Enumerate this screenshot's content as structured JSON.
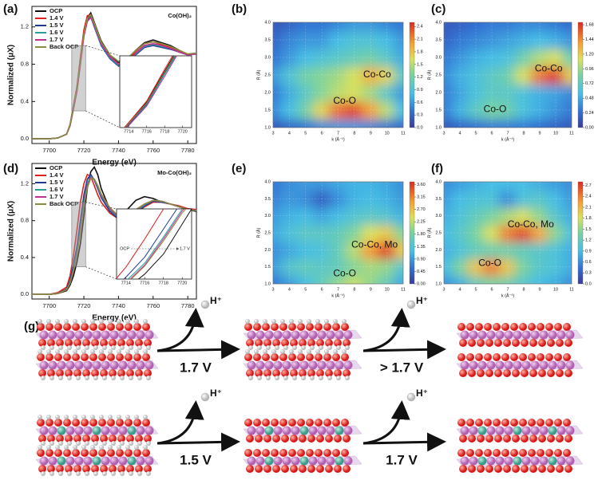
{
  "chart_data": [
    {
      "type": "line",
      "panel_label": "(a)",
      "annotation": "Co(OH)₂",
      "xlabel": "Energy (eV)",
      "ylabel": "Normalized (μX)",
      "xlim": [
        7690,
        7785
      ],
      "ylim": [
        -0.05,
        1.42
      ],
      "xticks": [
        7700,
        7720,
        7740,
        7760,
        7780
      ],
      "yticks": [
        {
          "value": 0,
          "label": "0.0"
        },
        {
          "value": 0.4,
          "label": "0.4"
        },
        {
          "value": 0.8,
          "label": "0.8"
        },
        {
          "value": 1.2,
          "label": "1.2"
        }
      ],
      "x": [
        7690,
        7700,
        7705,
        7710,
        7712,
        7714,
        7716,
        7718,
        7720,
        7722,
        7724,
        7726,
        7728,
        7730,
        7735,
        7740,
        7745,
        7750,
        7755,
        7760,
        7765,
        7770,
        7775,
        7780,
        7785
      ],
      "series": [
        {
          "name": "OCP",
          "color": "#111111",
          "values": [
            0,
            0,
            0.01,
            0.05,
            0.15,
            0.35,
            0.55,
            0.85,
            1.15,
            1.3,
            1.35,
            1.25,
            1.15,
            1.05,
            0.9,
            0.82,
            0.85,
            0.95,
            1.03,
            1.06,
            1.03,
            1.0,
            0.95,
            0.9,
            0.92
          ]
        },
        {
          "name": "1.4 V",
          "color": "#e02020",
          "values": [
            0,
            0,
            0.01,
            0.05,
            0.15,
            0.35,
            0.56,
            0.87,
            1.17,
            1.32,
            1.33,
            1.22,
            1.12,
            1.02,
            0.88,
            0.8,
            0.84,
            0.94,
            1.02,
            1.04,
            1.01,
            0.98,
            0.94,
            0.9,
            0.92
          ]
        },
        {
          "name": "1.5 V",
          "color": "#1f3a93",
          "values": [
            0,
            0,
            0.01,
            0.05,
            0.14,
            0.33,
            0.53,
            0.83,
            1.12,
            1.28,
            1.31,
            1.2,
            1.1,
            1.0,
            0.86,
            0.78,
            0.8,
            0.9,
            0.98,
            1.0,
            0.98,
            0.96,
            0.93,
            0.9,
            0.91
          ]
        },
        {
          "name": "1.6 V",
          "color": "#2a9d9d",
          "values": [
            0,
            0,
            0.01,
            0.05,
            0.14,
            0.32,
            0.52,
            0.82,
            1.11,
            1.27,
            1.3,
            1.21,
            1.11,
            1.01,
            0.87,
            0.79,
            0.81,
            0.91,
            0.99,
            1.01,
            0.99,
            0.97,
            0.93,
            0.9,
            0.91
          ]
        },
        {
          "name": "1.7 V",
          "color": "#c03090",
          "values": [
            0,
            0,
            0.01,
            0.05,
            0.14,
            0.32,
            0.51,
            0.8,
            1.1,
            1.26,
            1.3,
            1.22,
            1.12,
            1.02,
            0.88,
            0.8,
            0.82,
            0.92,
            1.0,
            1.02,
            1.0,
            0.97,
            0.93,
            0.9,
            0.91
          ]
        },
        {
          "name": "Back OCP",
          "color": "#8a8a40",
          "values": [
            0,
            0,
            0.01,
            0.05,
            0.15,
            0.34,
            0.54,
            0.84,
            1.13,
            1.29,
            1.33,
            1.24,
            1.14,
            1.04,
            0.9,
            0.83,
            0.86,
            0.95,
            1.02,
            1.04,
            1.02,
            0.99,
            0.95,
            0.91,
            0.92
          ]
        }
      ],
      "inset": {
        "xlim": [
          7713,
          7721
        ],
        "ylim": [
          0.3,
          1.0
        ],
        "xticks": [
          7714,
          7716,
          7718,
          7720
        ]
      }
    },
    {
      "type": "heatmap",
      "panel_label": "(b)",
      "xlabel": "k (Å⁻¹)",
      "ylabel": "R (Å)",
      "annotations": [
        "Co-Co",
        "Co-O"
      ],
      "xlim": [
        3,
        11
      ],
      "ylim": [
        1,
        4
      ],
      "xticks": [
        3,
        4,
        5,
        6,
        7,
        8,
        9,
        10,
        11
      ],
      "yticks": [
        {
          "value": 1,
          "label": "1.0"
        },
        1.5,
        {
          "value": 2,
          "label": "2.0"
        },
        2.5,
        {
          "value": 3,
          "label": "3.0"
        },
        3.5,
        {
          "value": 4,
          "label": "4.0"
        }
      ],
      "x": [
        3,
        4,
        5,
        6,
        7,
        8,
        9,
        10,
        11
      ],
      "y": [
        1,
        1.5,
        2,
        2.5,
        3,
        3.5,
        4
      ],
      "z": [
        [
          0.2,
          0.3,
          0.4,
          0.5,
          0.6,
          0.6,
          0.5,
          0.4,
          0.3
        ],
        [
          0.5,
          0.8,
          1.2,
          1.7,
          2.2,
          2.4,
          2.0,
          1.5,
          0.8
        ],
        [
          0.4,
          0.7,
          1.0,
          1.3,
          1.5,
          1.6,
          1.4,
          1.0,
          0.6
        ],
        [
          0.6,
          0.9,
          1.2,
          1.3,
          1.4,
          1.6,
          1.9,
          1.7,
          1.0
        ],
        [
          0.4,
          0.6,
          0.8,
          0.9,
          1.0,
          1.1,
          1.2,
          1.0,
          0.7
        ],
        [
          0.3,
          0.5,
          0.6,
          0.6,
          0.8,
          0.9,
          0.9,
          0.8,
          0.6
        ],
        [
          0.2,
          0.3,
          0.4,
          0.4,
          0.5,
          0.6,
          0.6,
          0.5,
          0.4
        ]
      ],
      "zlim": [
        0,
        2.5
      ],
      "zticks": [
        {
          "value": 0,
          "label": "0.0"
        },
        0.3,
        0.6,
        0.9,
        1.2,
        1.5,
        1.8,
        2.1,
        2.4
      ]
    },
    {
      "type": "heatmap",
      "panel_label": "(c)",
      "xlabel": "k (Å⁻¹)",
      "ylabel": "R (Å)",
      "annotations": [
        "Co-Co",
        "Co-O"
      ],
      "xlim": [
        3,
        11
      ],
      "ylim": [
        1,
        4
      ],
      "xticks": [
        3,
        4,
        5,
        6,
        7,
        8,
        9,
        10,
        11
      ],
      "yticks": [
        {
          "value": 1,
          "label": "1.0"
        },
        1.5,
        {
          "value": 2,
          "label": "2.0"
        },
        2.5,
        {
          "value": 3,
          "label": "3.0"
        },
        3.5,
        {
          "value": 4,
          "label": "4.0"
        }
      ],
      "x": [
        3,
        4,
        5,
        6,
        7,
        8,
        9,
        10,
        11
      ],
      "y": [
        1,
        1.5,
        2,
        2.5,
        3,
        3.5,
        4
      ],
      "z": [
        [
          0.15,
          0.2,
          0.25,
          0.3,
          0.3,
          0.3,
          0.25,
          0.2,
          0.15
        ],
        [
          0.3,
          0.5,
          0.7,
          0.85,
          0.8,
          0.6,
          0.5,
          0.4,
          0.3
        ],
        [
          0.3,
          0.45,
          0.6,
          0.7,
          0.7,
          0.6,
          0.5,
          0.45,
          0.35
        ],
        [
          0.35,
          0.5,
          0.6,
          0.7,
          0.8,
          1.1,
          1.5,
          1.68,
          1.2
        ],
        [
          0.3,
          0.4,
          0.5,
          0.55,
          0.6,
          0.8,
          1.0,
          1.1,
          0.8
        ],
        [
          0.2,
          0.3,
          0.35,
          0.4,
          0.45,
          0.5,
          0.55,
          0.5,
          0.4
        ],
        [
          0.15,
          0.2,
          0.25,
          0.3,
          0.3,
          0.35,
          0.35,
          0.3,
          0.25
        ]
      ],
      "zlim": [
        0,
        1.72
      ],
      "zticks": [
        {
          "value": 0,
          "label": "0.00"
        },
        0.24,
        0.48,
        0.72,
        0.96,
        {
          "value": 1.2,
          "label": "1.20"
        },
        1.44,
        1.68
      ]
    },
    {
      "type": "line",
      "panel_label": "(d)",
      "annotation": "Mo-Co(OH)₂",
      "xlabel": "Energy (eV)",
      "ylabel": "Normalized (μX)",
      "xlim": [
        7690,
        7785
      ],
      "ylim": [
        -0.05,
        1.42
      ],
      "xticks": [
        7700,
        7720,
        7740,
        7760,
        7780
      ],
      "yticks": [
        {
          "value": 0,
          "label": "0.0"
        },
        {
          "value": 0.4,
          "label": "0.4"
        },
        {
          "value": 0.8,
          "label": "0.8"
        },
        {
          "value": 1.2,
          "label": "1.2"
        }
      ],
      "x": [
        7690,
        7700,
        7705,
        7710,
        7712,
        7714,
        7716,
        7718,
        7720,
        7722,
        7724,
        7726,
        7728,
        7730,
        7735,
        7740,
        7745,
        7750,
        7755,
        7760,
        7765,
        7770,
        7775,
        7780,
        7785
      ],
      "series": [
        {
          "name": "OCP",
          "color": "#111111",
          "values": [
            0,
            0,
            0.01,
            0.04,
            0.1,
            0.2,
            0.35,
            0.55,
            0.85,
            1.15,
            1.33,
            1.38,
            1.3,
            1.15,
            0.92,
            0.85,
            0.92,
            1.02,
            1.06,
            1.04,
            1.0,
            0.98,
            0.95,
            0.92,
            0.9
          ]
        },
        {
          "name": "1.4 V",
          "color": "#e02020",
          "values": [
            0,
            0,
            0.02,
            0.08,
            0.2,
            0.42,
            0.7,
            1.0,
            1.2,
            1.3,
            1.28,
            1.18,
            1.08,
            1.0,
            0.88,
            0.82,
            0.82,
            0.88,
            0.95,
            1.0,
            1.0,
            0.98,
            0.96,
            0.93,
            0.92
          ]
        },
        {
          "name": "1.5 V",
          "color": "#1f3a93",
          "values": [
            0,
            0,
            0.01,
            0.06,
            0.15,
            0.32,
            0.52,
            0.8,
            1.08,
            1.25,
            1.3,
            1.24,
            1.15,
            1.05,
            0.9,
            0.82,
            0.82,
            0.88,
            0.96,
            1.01,
            1.0,
            0.98,
            0.95,
            0.92,
            0.91
          ]
        },
        {
          "name": "1.6 V",
          "color": "#2a9d9d",
          "values": [
            0,
            0,
            0.01,
            0.05,
            0.13,
            0.28,
            0.46,
            0.72,
            1.0,
            1.2,
            1.28,
            1.25,
            1.17,
            1.07,
            0.92,
            0.83,
            0.84,
            0.9,
            0.97,
            1.02,
            1.01,
            0.98,
            0.95,
            0.92,
            0.91
          ]
        },
        {
          "name": "1.7 V",
          "color": "#c03090",
          "values": [
            0,
            0,
            0.01,
            0.05,
            0.12,
            0.26,
            0.44,
            0.7,
            0.98,
            1.18,
            1.27,
            1.25,
            1.18,
            1.08,
            0.93,
            0.84,
            0.85,
            0.91,
            0.98,
            1.02,
            1.01,
            0.98,
            0.95,
            0.92,
            0.91
          ]
        },
        {
          "name": "Back OCP",
          "color": "#8a8a40",
          "values": [
            0,
            0,
            0.01,
            0.05,
            0.12,
            0.25,
            0.43,
            0.68,
            0.96,
            1.16,
            1.26,
            1.25,
            1.18,
            1.09,
            0.94,
            0.85,
            0.86,
            0.92,
            0.98,
            1.02,
            1.01,
            0.98,
            0.95,
            0.92,
            0.91
          ]
        }
      ],
      "inset": {
        "xlim": [
          7713,
          7721
        ],
        "ylim": [
          0.3,
          1.0
        ],
        "xticks": [
          7714,
          7716,
          7718,
          7720
        ],
        "annotations": [
          "OCP",
          "1.7 V"
        ]
      }
    },
    {
      "type": "heatmap",
      "panel_label": "(e)",
      "xlabel": "k (Å⁻¹)",
      "ylabel": "R (Å)",
      "annotations": [
        "Co-Co, Mo",
        "Co-O"
      ],
      "xlim": [
        3,
        11
      ],
      "ylim": [
        1,
        4
      ],
      "xticks": [
        3,
        4,
        5,
        6,
        7,
        8,
        9,
        10,
        11
      ],
      "yticks": [
        {
          "value": 1,
          "label": "1.0"
        },
        1.5,
        {
          "value": 2,
          "label": "2.0"
        },
        2.5,
        {
          "value": 3,
          "label": "3.0"
        },
        3.5,
        {
          "value": 4,
          "label": "4.0"
        }
      ],
      "x": [
        3,
        4,
        5,
        6,
        7,
        8,
        9,
        10,
        11
      ],
      "y": [
        1,
        1.5,
        2,
        2.5,
        3,
        3.5,
        4
      ],
      "z": [
        [
          0.6,
          0.9,
          1.2,
          1.6,
          2.0,
          2.3,
          2.0,
          1.6,
          1.0
        ],
        [
          0.9,
          1.4,
          1.6,
          1.5,
          1.6,
          1.9,
          2.1,
          2.0,
          1.4
        ],
        [
          0.8,
          1.0,
          1.2,
          1.3,
          1.6,
          2.2,
          3.0,
          3.6,
          2.6
        ],
        [
          1.0,
          1.3,
          1.5,
          1.5,
          1.6,
          1.9,
          2.4,
          2.6,
          1.9
        ],
        [
          0.9,
          1.1,
          1.2,
          1.0,
          1.2,
          1.4,
          1.5,
          1.4,
          1.1
        ],
        [
          0.7,
          0.9,
          0.8,
          0.4,
          0.8,
          1.1,
          1.2,
          1.1,
          0.9
        ],
        [
          0.6,
          0.8,
          0.9,
          0.9,
          1.0,
          1.1,
          1.1,
          1.0,
          0.8
        ]
      ],
      "zlim": [
        0,
        3.7
      ],
      "zticks": [
        {
          "value": 0,
          "label": "0.00"
        },
        0.45,
        {
          "value": 0.9,
          "label": "0.90"
        },
        1.35,
        {
          "value": 1.8,
          "label": "1.80"
        },
        2.25,
        {
          "value": 2.7,
          "label": "2.70"
        },
        3.15,
        {
          "value": 3.6,
          "label": "3.60"
        }
      ]
    },
    {
      "type": "heatmap",
      "panel_label": "(f)",
      "xlabel": "k (Å⁻¹)",
      "ylabel": "R (Å)",
      "annotations": [
        "Co-Co, Mo",
        "Co-O"
      ],
      "xlim": [
        3,
        11
      ],
      "ylim": [
        1,
        4
      ],
      "xticks": [
        3,
        4,
        5,
        6,
        7,
        8,
        9,
        10,
        11
      ],
      "yticks": [
        {
          "value": 1,
          "label": "1.0"
        },
        1.5,
        {
          "value": 2,
          "label": "2.0"
        },
        2.5,
        {
          "value": 3,
          "label": "3.0"
        },
        3.5,
        {
          "value": 4,
          "label": "4.0"
        }
      ],
      "x": [
        3,
        4,
        5,
        6,
        7,
        8,
        9,
        10,
        11
      ],
      "y": [
        1,
        1.5,
        2,
        2.5,
        3,
        3.5,
        4
      ],
      "z": [
        [
          0.6,
          0.8,
          1.2,
          1.4,
          1.3,
          1.1,
          0.9,
          0.8,
          0.6
        ],
        [
          0.9,
          1.4,
          2.0,
          2.4,
          2.0,
          1.4,
          1.1,
          1.0,
          0.8
        ],
        [
          0.8,
          1.0,
          1.2,
          1.3,
          1.3,
          1.2,
          1.1,
          1.0,
          0.8
        ],
        [
          0.9,
          1.1,
          1.4,
          1.8,
          2.4,
          2.7,
          2.2,
          1.5,
          1.0
        ],
        [
          0.8,
          1.0,
          1.2,
          1.4,
          1.6,
          1.8,
          1.5,
          1.1,
          0.8
        ],
        [
          0.7,
          0.9,
          1.0,
          1.0,
          0.6,
          1.0,
          1.1,
          0.9,
          0.7
        ],
        [
          0.6,
          0.7,
          0.8,
          0.9,
          0.9,
          0.9,
          0.8,
          0.7,
          0.6
        ]
      ],
      "zlim": [
        0,
        2.8
      ],
      "zticks": [
        {
          "value": 0,
          "label": "0.0"
        },
        0.3,
        0.6,
        0.9,
        1.2,
        1.5,
        1.8,
        2.1,
        2.4,
        2.7
      ]
    }
  ],
  "diagram": {
    "label": "(g)",
    "steps": [
      {
        "species": "H⁺",
        "potential": "1.7 V"
      },
      {
        "species": "H⁺",
        "potential": "> 1.7 V"
      },
      {
        "species": "H⁺",
        "potential": "1.5 V"
      },
      {
        "species": "H⁺",
        "potential": "1.7 V"
      }
    ]
  }
}
